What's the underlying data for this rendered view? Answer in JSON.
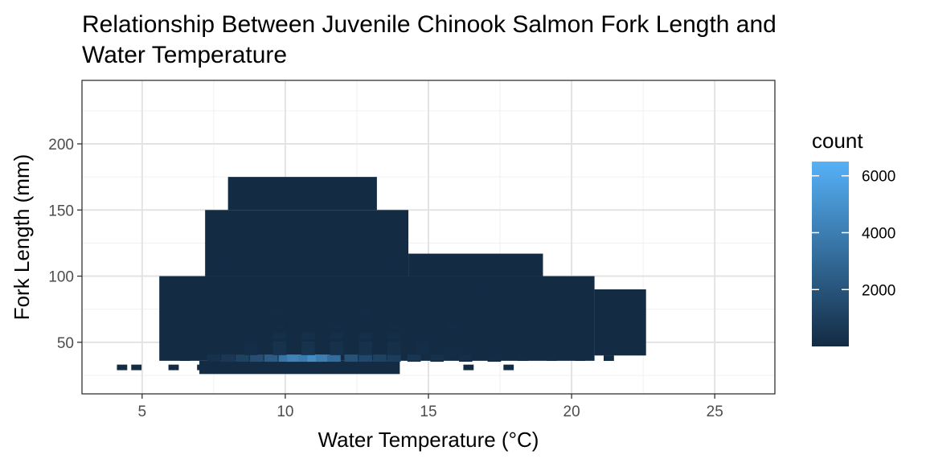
{
  "chart_data": {
    "type": "heatmap",
    "title": "Relationship Between Juvenile Chinook Salmon Fork Length and Water Temperature",
    "xlabel": "Water Temperature (°C)",
    "ylabel": "Fork Length (mm)",
    "xlim": [
      2.9,
      27.1
    ],
    "ylim": [
      11,
      248
    ],
    "x_ticks": [
      5,
      10,
      15,
      20,
      25
    ],
    "y_ticks": [
      50,
      100,
      150,
      200
    ],
    "grid": true,
    "legend": {
      "title": "count",
      "placement": "right",
      "min": 1,
      "max": 6500,
      "ticks": [
        2000,
        4000,
        6000
      ],
      "color_low": "#132B43",
      "color_high": "#56B1F7"
    },
    "bins": [
      [
        4.3,
        31,
        8
      ],
      [
        4.8,
        31,
        6
      ],
      [
        6.1,
        31,
        7
      ],
      [
        7.1,
        31,
        5
      ],
      [
        7.6,
        31,
        4
      ],
      [
        8.1,
        31,
        9
      ],
      [
        9.4,
        31,
        11
      ],
      [
        12,
        31,
        9
      ],
      [
        13.1,
        31,
        6
      ],
      [
        16.4,
        31,
        4
      ],
      [
        17.8,
        31,
        4
      ],
      [
        6.5,
        38,
        42
      ],
      [
        7.5,
        38,
        300
      ],
      [
        8,
        38,
        650
      ],
      [
        8.5,
        38,
        1100
      ],
      [
        9,
        38,
        1700
      ],
      [
        9.5,
        38,
        2400
      ],
      [
        10,
        38,
        3600
      ],
      [
        10.3,
        38,
        4200
      ],
      [
        10.7,
        38,
        3900
      ],
      [
        11,
        38,
        4700
      ],
      [
        11.3,
        38,
        4000
      ],
      [
        11.7,
        38,
        3200
      ],
      [
        12.3,
        38,
        1900
      ],
      [
        12.8,
        38,
        1400
      ],
      [
        13.3,
        38,
        1100
      ],
      [
        13.8,
        38,
        900
      ],
      [
        14.5,
        38,
        520
      ],
      [
        15.3,
        38,
        300
      ],
      [
        16.3,
        38,
        180
      ],
      [
        17.3,
        38,
        110
      ],
      [
        18.3,
        38,
        70
      ],
      [
        19.3,
        38,
        50
      ],
      [
        20.3,
        38,
        30
      ],
      [
        21.3,
        38,
        10
      ],
      [
        8.8,
        43,
        150
      ],
      [
        9.8,
        43,
        350
      ],
      [
        10.8,
        43,
        380
      ],
      [
        11.8,
        43,
        290
      ],
      [
        12.8,
        43,
        300
      ],
      [
        13.8,
        43,
        260
      ],
      [
        14.8,
        43,
        150
      ],
      [
        15.8,
        43,
        120
      ],
      [
        8.8,
        48,
        150
      ],
      [
        9.8,
        48,
        320
      ],
      [
        10.8,
        48,
        330
      ],
      [
        11.8,
        48,
        280
      ],
      [
        12.8,
        48,
        290
      ],
      [
        13.8,
        48,
        260
      ],
      [
        14.8,
        48,
        140
      ],
      [
        9.8,
        55,
        200
      ],
      [
        10.8,
        55,
        220
      ],
      [
        11.8,
        55,
        180
      ],
      [
        12.8,
        55,
        190
      ],
      [
        13.8,
        55,
        170
      ],
      [
        9.8,
        63,
        90
      ],
      [
        11.8,
        63,
        100
      ],
      [
        13.8,
        63,
        90
      ],
      [
        15.8,
        63,
        60
      ],
      [
        9.8,
        73,
        50
      ],
      [
        12.8,
        73,
        60
      ],
      [
        15.8,
        73,
        40
      ],
      [
        18.8,
        73,
        30
      ],
      [
        6.3,
        88,
        3
      ],
      [
        9.3,
        90,
        30
      ],
      [
        12.8,
        90,
        35
      ],
      [
        16.8,
        90,
        20
      ],
      [
        19.8,
        90,
        15
      ],
      [
        7.8,
        110,
        20
      ],
      [
        10.8,
        110,
        25
      ],
      [
        13.8,
        110,
        20
      ],
      [
        17.8,
        110,
        10
      ],
      [
        8.8,
        135,
        10
      ],
      [
        10.8,
        135,
        15
      ],
      [
        12.8,
        135,
        10
      ],
      [
        9.8,
        160,
        5
      ],
      [
        11.8,
        160,
        5
      ]
    ]
  }
}
